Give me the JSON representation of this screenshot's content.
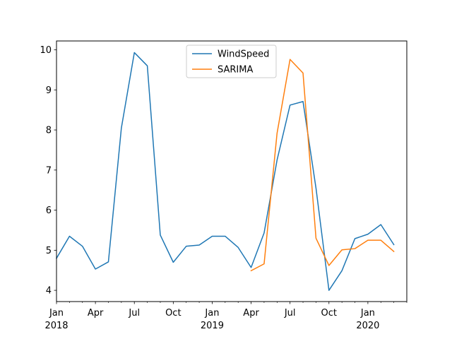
{
  "chart_data": {
    "type": "line",
    "title": "",
    "xlabel": "",
    "ylabel": "",
    "x_start": "2018-01",
    "x_end": "2020-04",
    "ylim": [
      3.72,
      10.22
    ],
    "yticks": [
      4,
      5,
      6,
      7,
      8,
      9,
      10
    ],
    "xticks_major": [
      {
        "date": "2018-01",
        "label": "Jan",
        "year": "2018"
      },
      {
        "date": "2018-04",
        "label": "Apr",
        "year": ""
      },
      {
        "date": "2018-07",
        "label": "Jul",
        "year": ""
      },
      {
        "date": "2018-10",
        "label": "Oct",
        "year": ""
      },
      {
        "date": "2019-01",
        "label": "Jan",
        "year": "2019"
      },
      {
        "date": "2019-04",
        "label": "Apr",
        "year": ""
      },
      {
        "date": "2019-07",
        "label": "Jul",
        "year": ""
      },
      {
        "date": "2019-10",
        "label": "Oct",
        "year": ""
      },
      {
        "date": "2020-01",
        "label": "Jan",
        "year": "2020"
      }
    ],
    "grid": false,
    "legend_position": "upper-center",
    "series": [
      {
        "name": "WindSpeed",
        "color": "#1f77b4",
        "points": [
          [
            "2018-01",
            4.8
          ],
          [
            "2018-02",
            5.35
          ],
          [
            "2018-03",
            5.1
          ],
          [
            "2018-04",
            4.53
          ],
          [
            "2018-05",
            4.71
          ],
          [
            "2018-06",
            8.05
          ],
          [
            "2018-07",
            9.93
          ],
          [
            "2018-08",
            9.6
          ],
          [
            "2018-09",
            5.38
          ],
          [
            "2018-10",
            4.7
          ],
          [
            "2018-11",
            5.1
          ],
          [
            "2018-12",
            5.13
          ],
          [
            "2019-01",
            5.35
          ],
          [
            "2019-02",
            5.35
          ],
          [
            "2019-03",
            5.07
          ],
          [
            "2019-04",
            4.57
          ],
          [
            "2019-05",
            5.43
          ],
          [
            "2019-06",
            7.25
          ],
          [
            "2019-07",
            8.62
          ],
          [
            "2019-08",
            8.71
          ],
          [
            "2019-09",
            6.55
          ],
          [
            "2019-10",
            4.0
          ],
          [
            "2019-11",
            4.49
          ],
          [
            "2019-12",
            5.29
          ],
          [
            "2020-01",
            5.4
          ],
          [
            "2020-02",
            5.64
          ],
          [
            "2020-03",
            5.14
          ]
        ]
      },
      {
        "name": "SARIMA",
        "color": "#ff7f0e",
        "points": [
          [
            "2019-04",
            4.49
          ],
          [
            "2019-05",
            4.66
          ],
          [
            "2019-06",
            7.92
          ],
          [
            "2019-07",
            9.76
          ],
          [
            "2019-08",
            9.42
          ],
          [
            "2019-09",
            5.3
          ],
          [
            "2019-10",
            4.62
          ],
          [
            "2019-11",
            5.01
          ],
          [
            "2019-12",
            5.04
          ],
          [
            "2020-01",
            5.25
          ],
          [
            "2020-02",
            5.25
          ],
          [
            "2020-03",
            4.97
          ]
        ]
      }
    ]
  }
}
